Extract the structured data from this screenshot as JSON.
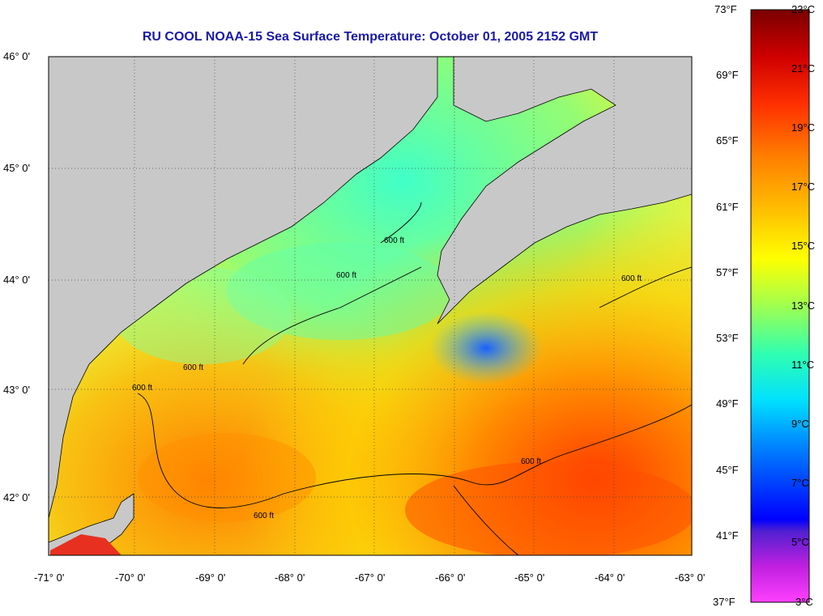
{
  "title": "RU COOL  NOAA-15  Sea Surface Temperature:  October 01, 2005 2152 GMT",
  "lat_labels": [
    "46° 0'",
    "45° 0'",
    "44° 0'",
    "43° 0'",
    "42° 0'"
  ],
  "lon_labels": [
    "-71° 0'",
    "-70° 0'",
    "-69° 0'",
    "-68° 0'",
    "-67° 0'",
    "-66° 0'",
    "-65° 0'",
    "-64° 0'",
    "-63° 0'"
  ],
  "contour_label": "600 ft",
  "colorbar": {
    "fahrenheit": [
      "73°F",
      "69°F",
      "65°F",
      "61°F",
      "57°F",
      "53°F",
      "49°F",
      "45°F",
      "41°F",
      "37°F"
    ],
    "celsius": [
      "23°C",
      "21°C",
      "19°C",
      "17°C",
      "15°C",
      "13°C",
      "11°C",
      "9°C",
      "7°C",
      "5°C",
      "3°C"
    ],
    "colors": [
      "#8b0000",
      "#ff2a00",
      "#ff8000",
      "#ffd000",
      "#ffff00",
      "#b0ff40",
      "#40ff90",
      "#00ffff",
      "#00a0ff",
      "#0000ff",
      "#8000ff",
      "#ff00ff"
    ]
  },
  "colors": {
    "land": "#c8c8c8",
    "title": "#1a1aa8"
  }
}
